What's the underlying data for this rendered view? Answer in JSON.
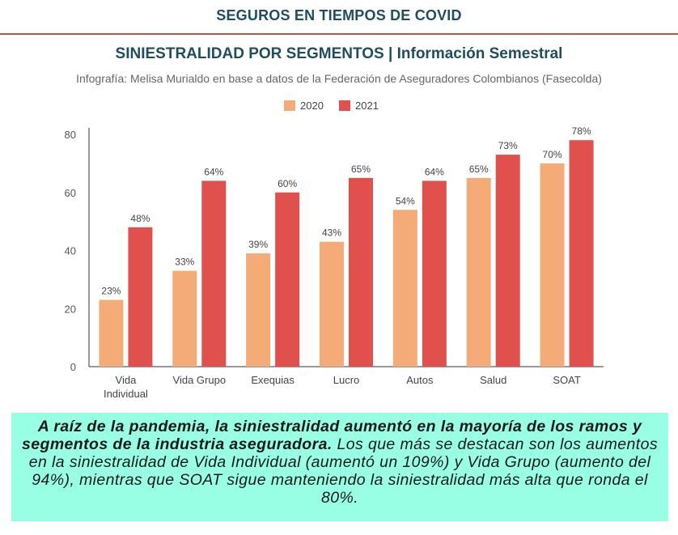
{
  "header": {
    "title": "SEGUROS EN TIEMPOS DE COVID"
  },
  "colors": {
    "s2020": "#f5ab78",
    "s2021": "#e0514e",
    "accent": "#1f4e5c",
    "rule": "#b8573e",
    "note_bg": "#99ffe4"
  },
  "chart_data": {
    "type": "bar",
    "title": "SINIESTRALIDAD POR SEGMENTOS | Información Semestral",
    "subtitle": "Infografía: Melisa Murialdo en base a datos de la Federación de Aseguradores Colombianos (Fasecolda)",
    "categories": [
      [
        "Vida",
        "Individual"
      ],
      [
        "Vida Grupo"
      ],
      [
        "Exequias"
      ],
      [
        "Lucro"
      ],
      [
        "Autos"
      ],
      [
        "Salud"
      ],
      [
        "SOAT"
      ]
    ],
    "series": [
      {
        "name": "2020",
        "values": [
          23,
          33,
          39,
          43,
          54,
          65,
          70
        ],
        "labels": [
          "23%",
          "33%",
          "39%",
          "43%",
          "54%",
          "65%",
          "70%"
        ]
      },
      {
        "name": "2021",
        "values": [
          48,
          64,
          60,
          65,
          64,
          73,
          78
        ],
        "labels": [
          "48%",
          "64%",
          "60%",
          "65%",
          "64%",
          "73%",
          "78%"
        ]
      }
    ],
    "ylim": [
      0,
      80
    ],
    "yticks": [
      "0",
      "20",
      "40",
      "60",
      "80"
    ],
    "legend_position": "top-center",
    "grid": false
  },
  "note": {
    "strong": "A raíz de la pandemia, la siniestralidad aumentó en la mayoría de los ramos y segmentos de la industria aseguradora.",
    "rest": " Los que más se destacan son los aumentos en la siniestralidad de Vida Individual (aumentó un 109%) y Vida Grupo (aumento del 94%), mientras que SOAT sigue manteniendo la siniestralidad más alta que ronda el 80%."
  }
}
